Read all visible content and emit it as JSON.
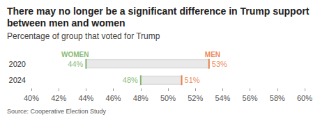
{
  "chart_data": {
    "type": "dumbbell",
    "title": "There may no longer be a significant difference in Trump support between men and women",
    "subtitle": "Percentage of group that voted for Trump",
    "source": "Source: Cooperative Election Study",
    "categories": [
      "2020",
      "2024"
    ],
    "series": [
      {
        "name": "WOMEN",
        "color": "#6aa84f",
        "values": [
          44,
          48
        ],
        "value_labels": [
          "44%",
          "48%"
        ]
      },
      {
        "name": "MEN",
        "color": "#e8692a",
        "values": [
          53,
          51
        ],
        "value_labels": [
          "53%",
          "51%"
        ]
      }
    ],
    "xlim": [
      40,
      60
    ],
    "xticks": [
      {
        "value": 40,
        "label": "40%"
      },
      {
        "value": 42,
        "label": "42%"
      },
      {
        "value": 44,
        "label": "44%"
      },
      {
        "value": 46,
        "label": "46%"
      },
      {
        "value": 48,
        "label": "48%"
      },
      {
        "value": 50,
        "label": "50%"
      },
      {
        "value": 52,
        "label": "52%"
      },
      {
        "value": 54,
        "label": "54%"
      },
      {
        "value": 56,
        "label": "56%"
      },
      {
        "value": 58,
        "label": "58%"
      },
      {
        "value": 60,
        "label": "60%"
      }
    ],
    "orientation": "horizontal",
    "data_labels": true,
    "grid": false
  }
}
